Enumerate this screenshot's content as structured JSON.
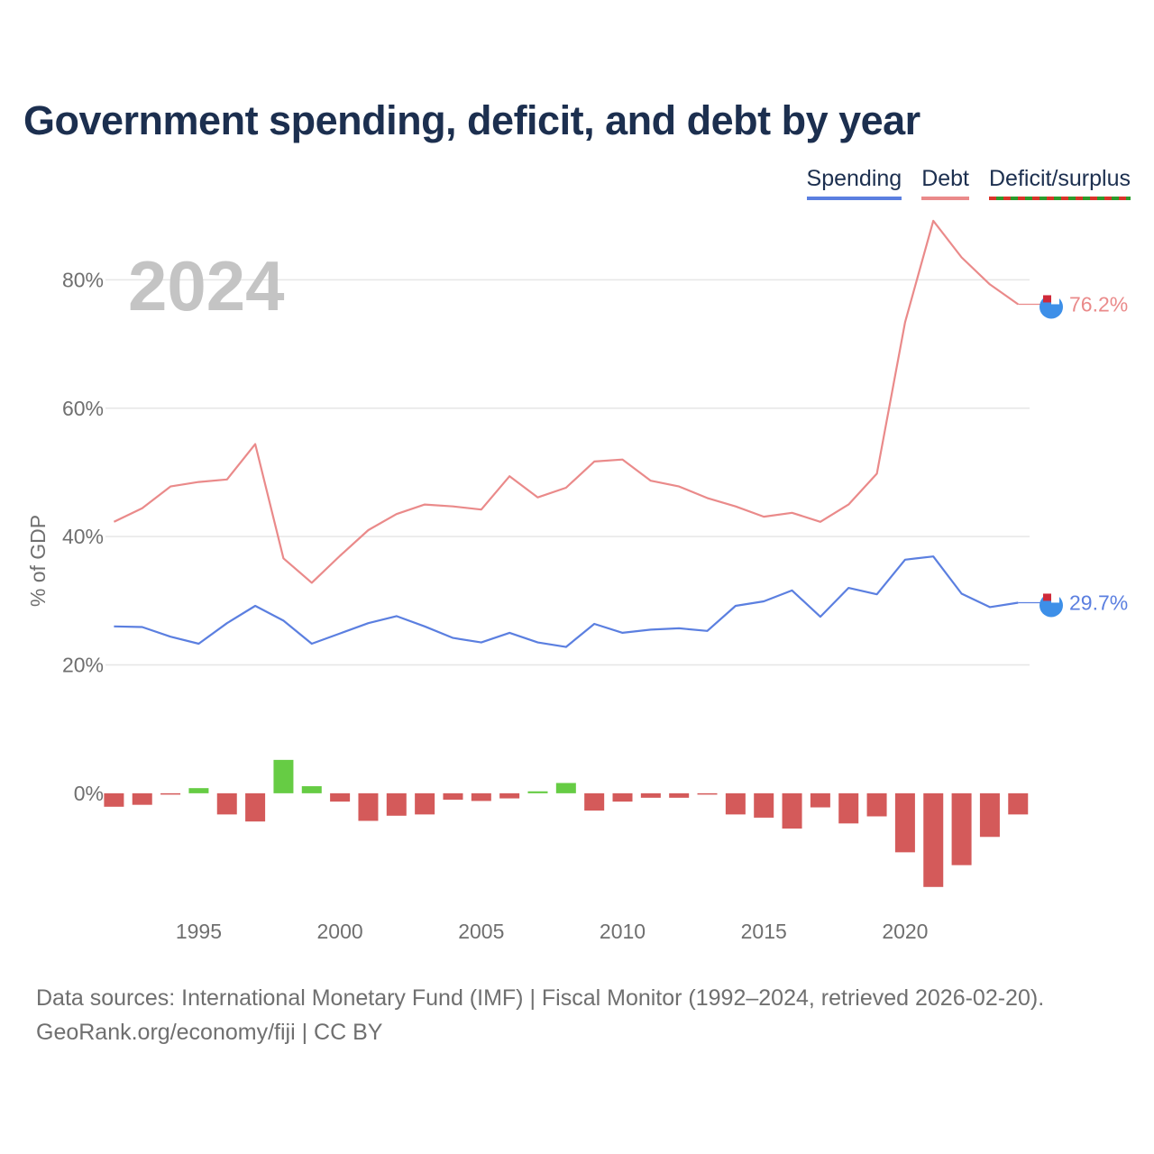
{
  "title": "Government spending, deficit, and debt by year",
  "legend": {
    "spending": "Spending",
    "debt": "Debt",
    "deficit": "Deficit/surplus"
  },
  "colors": {
    "spending": "#5b7fe0",
    "debt": "#ea8a8a",
    "deficit": "#d45a5a",
    "surplus": "#66cc44",
    "grid": "#e6e6e6",
    "axis_text": "#6f6f6f",
    "year_label": "#c4c4c4",
    "marker": "#3d8fe8"
  },
  "footer": {
    "line1": "Data sources: International Monetary Fund (IMF) | Fiscal Monitor (1992–2024, retrieved 2026-02-20).",
    "line2": "GeoRank.org/economy/fiji | CC BY"
  },
  "chart_data": {
    "type": "line",
    "current_year_label": "2024",
    "ylabel": "% of GDP",
    "ylim": [
      -18,
      92
    ],
    "y_ticks": [
      {
        "value": 0,
        "label": "0%"
      },
      {
        "value": 20,
        "label": "20%"
      },
      {
        "value": 40,
        "label": "40%"
      },
      {
        "value": 60,
        "label": "60%"
      },
      {
        "value": 80,
        "label": "80%"
      }
    ],
    "xlim": [
      1991.7,
      2025.3
    ],
    "x_ticks": [
      {
        "value": 1995,
        "label": "1995"
      },
      {
        "value": 2000,
        "label": "2000"
      },
      {
        "value": 2005,
        "label": "2005"
      },
      {
        "value": 2010,
        "label": "2010"
      },
      {
        "value": 2015,
        "label": "2015"
      },
      {
        "value": 2020,
        "label": "2020"
      }
    ],
    "x": [
      1992,
      1993,
      1994,
      1995,
      1996,
      1997,
      1998,
      1999,
      2000,
      2001,
      2002,
      2003,
      2004,
      2005,
      2006,
      2007,
      2008,
      2009,
      2010,
      2011,
      2012,
      2013,
      2014,
      2015,
      2016,
      2017,
      2018,
      2019,
      2020,
      2021,
      2022,
      2023,
      2024
    ],
    "series": [
      {
        "name": "Spending",
        "type": "line",
        "values": [
          26.0,
          25.9,
          24.4,
          23.3,
          26.5,
          29.2,
          26.9,
          23.3,
          24.9,
          26.5,
          27.6,
          26.0,
          24.2,
          23.5,
          25.0,
          23.5,
          22.8,
          26.4,
          25.0,
          25.5,
          25.7,
          25.3,
          29.2,
          29.9,
          31.6,
          27.5,
          32.0,
          31.0,
          36.4,
          36.9,
          31.1,
          29.0,
          29.7
        ],
        "end_label": "29.7%"
      },
      {
        "name": "Debt",
        "type": "line",
        "values": [
          42.3,
          44.4,
          47.8,
          48.5,
          48.9,
          54.4,
          36.6,
          32.8,
          37.0,
          41.0,
          43.5,
          45.0,
          44.7,
          44.2,
          49.4,
          46.1,
          47.6,
          51.7,
          52.0,
          48.7,
          47.8,
          46.0,
          44.7,
          43.1,
          43.7,
          42.3,
          45.0,
          49.8,
          73.4,
          89.2,
          83.5,
          79.3,
          76.2
        ],
        "end_label": "76.2%"
      },
      {
        "name": "Deficit/surplus",
        "type": "bar",
        "values": [
          -2.1,
          -1.8,
          -0.2,
          0.8,
          -3.3,
          -4.4,
          5.2,
          1.1,
          -1.3,
          -4.3,
          -3.5,
          -3.3,
          -1.0,
          -1.2,
          -0.8,
          0.3,
          1.6,
          -2.7,
          -1.3,
          -0.7,
          -0.7,
          -0.1,
          -3.3,
          -3.8,
          -5.5,
          -2.2,
          -4.7,
          -3.6,
          -9.2,
          -14.6,
          -11.2,
          -6.8,
          -3.3
        ]
      }
    ]
  }
}
